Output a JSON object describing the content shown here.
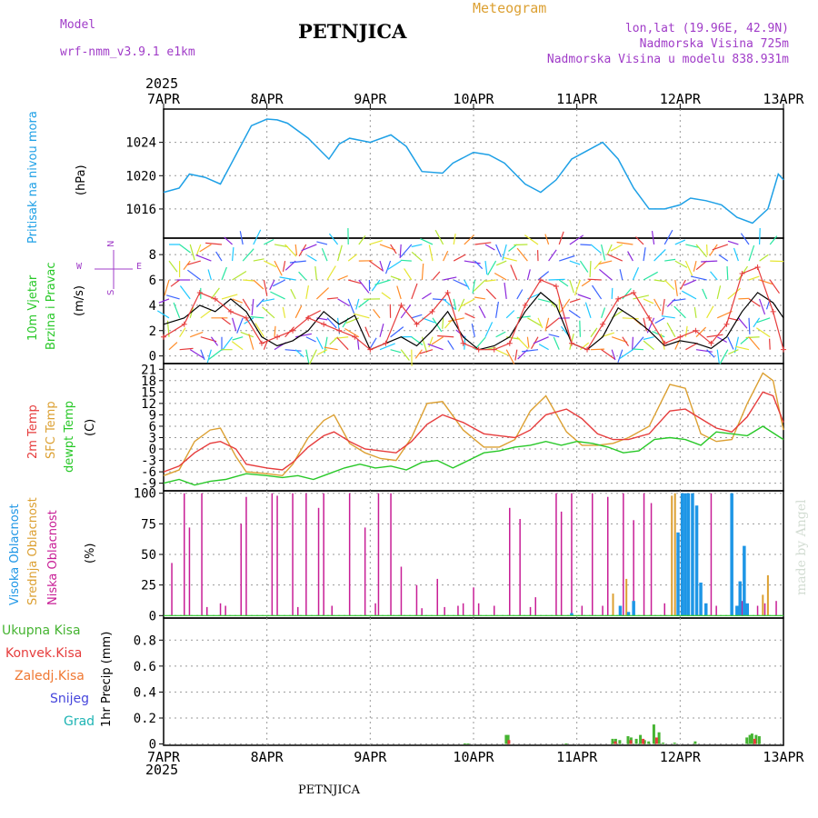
{
  "header": {
    "model_label": "Model",
    "model_name": "wrf-nmm_v3.9.1 e1km",
    "title": "PETNJICA",
    "meteogram_label": "Meteogram",
    "lonlat": "lon,lat (19.96E, 42.9N)",
    "altitude": "Nadmorska Visina 725m",
    "model_altitude": "Nadmorska Visina u modelu 838.931m",
    "year": "2025",
    "footer_title": "PETNJICA",
    "watermark": "made by Angel"
  },
  "colors": {
    "pressure": "#1ea0e6",
    "temp2m": "#e63c3c",
    "sfc": "#dca032",
    "dew": "#28c828",
    "cloud_high": "#1e96e6",
    "cloud_mid": "#dca032",
    "cloud_low": "#c81e96",
    "precip_total": "#46b432",
    "precip_conv": "#e63c3c",
    "precip_frozen": "#f07832",
    "precip_snow": "#4646dc",
    "precip_hail": "#1eb4b4",
    "axis_text": "#000000",
    "meta_text": "#a03cc8"
  },
  "chart_data": [
    {
      "type": "line",
      "panel": "pressure",
      "ylabel_name": "Pritisak na nivou mora",
      "ylabel_unit": "(hPa)",
      "yticks": [
        1016,
        1020,
        1024
      ],
      "ylim": [
        1012.5,
        1028
      ],
      "x_unit": "days since 7APR 00UTC",
      "xlim": [
        0,
        6
      ],
      "xticks": [
        "7APR",
        "8APR",
        "9APR",
        "10APR",
        "11APR",
        "12APR",
        "13APR"
      ],
      "series": [
        {
          "name": "pressure",
          "x": [
            0,
            0.15,
            0.25,
            0.4,
            0.55,
            0.7,
            0.85,
            1.0,
            1.1,
            1.2,
            1.4,
            1.6,
            1.7,
            1.8,
            2.0,
            2.2,
            2.35,
            2.5,
            2.7,
            2.8,
            3.0,
            3.15,
            3.3,
            3.5,
            3.65,
            3.8,
            3.95,
            4.1,
            4.25,
            4.4,
            4.55,
            4.7,
            4.85,
            5.0,
            5.1,
            5.25,
            5.4,
            5.55,
            5.7,
            5.85,
            5.95,
            6.0
          ],
          "values": [
            1018.0,
            1018.5,
            1020.2,
            1019.8,
            1019.0,
            1022.5,
            1026.0,
            1026.8,
            1026.7,
            1026.3,
            1024.5,
            1022.0,
            1023.8,
            1024.5,
            1024.0,
            1024.9,
            1023.5,
            1020.5,
            1020.3,
            1021.5,
            1022.8,
            1022.5,
            1021.5,
            1019.0,
            1018.0,
            1019.5,
            1022.0,
            1023.0,
            1024.0,
            1022.0,
            1018.5,
            1016.0,
            1016.0,
            1016.5,
            1017.3,
            1017.0,
            1016.5,
            1015.0,
            1014.3,
            1016.0,
            1020.2,
            1019.5
          ]
        }
      ]
    },
    {
      "type": "line",
      "panel": "wind",
      "ylabel_name": "10m Vjetar",
      "ylabel_name2": "Brzina i Pravac",
      "ylabel_unit": "(m/s)",
      "compass_n": "N",
      "compass_w": "W",
      "compass_e": "E",
      "compass_s": "S",
      "yticks": [
        0,
        2,
        4,
        6,
        8
      ],
      "ylim": [
        -0.6,
        9.3
      ],
      "xlim": [
        0,
        6
      ],
      "barb_rows": [
        8.8,
        7.5,
        6,
        4.5,
        3,
        1.5,
        0.5
      ],
      "series": [
        {
          "name": "wind speed",
          "x": [
            0,
            0.2,
            0.35,
            0.5,
            0.65,
            0.8,
            0.95,
            1.1,
            1.25,
            1.4,
            1.55,
            1.7,
            1.85,
            2.0,
            2.15,
            2.3,
            2.45,
            2.6,
            2.75,
            2.9,
            3.05,
            3.2,
            3.35,
            3.5,
            3.65,
            3.8,
            3.95,
            4.1,
            4.25,
            4.4,
            4.55,
            4.7,
            4.85,
            5.0,
            5.15,
            5.3,
            5.45,
            5.6,
            5.75,
            5.9,
            6.0
          ],
          "values": [
            2.5,
            3.0,
            4.0,
            3.5,
            4.5,
            3.5,
            1.5,
            0.8,
            1.2,
            2.0,
            3.5,
            2.5,
            3.2,
            0.5,
            1.0,
            1.5,
            0.8,
            2.0,
            3.5,
            1.5,
            0.5,
            0.8,
            1.5,
            3.5,
            5.0,
            4.0,
            1.0,
            0.5,
            1.5,
            3.8,
            3.0,
            2.0,
            0.8,
            1.2,
            1.0,
            0.6,
            1.5,
            3.5,
            5.0,
            4.2,
            3.0
          ]
        },
        {
          "name": "wind gust",
          "x": [
            0,
            0.2,
            0.35,
            0.5,
            0.65,
            0.8,
            0.95,
            1.1,
            1.25,
            1.4,
            1.55,
            1.7,
            1.85,
            2.0,
            2.15,
            2.3,
            2.45,
            2.6,
            2.75,
            2.9,
            3.05,
            3.2,
            3.35,
            3.5,
            3.65,
            3.8,
            3.95,
            4.1,
            4.25,
            4.4,
            4.55,
            4.7,
            4.85,
            5.0,
            5.15,
            5.3,
            5.45,
            5.6,
            5.75,
            5.9,
            6.0
          ],
          "values": [
            1.5,
            2.5,
            5.0,
            4.5,
            3.5,
            3.0,
            1.0,
            1.5,
            2.0,
            3.0,
            2.5,
            2.0,
            1.5,
            0.5,
            1.0,
            4.0,
            2.5,
            3.5,
            5.0,
            1.0,
            0.5,
            0.5,
            1.0,
            4.0,
            6.0,
            5.5,
            1.0,
            0.5,
            2.5,
            4.5,
            5.0,
            3.0,
            1.0,
            1.5,
            2.0,
            1.0,
            2.5,
            6.5,
            7.0,
            3.5,
            0.5
          ]
        }
      ]
    },
    {
      "type": "line",
      "panel": "temperature",
      "ylabel_t2": "2m Temp",
      "ylabel_sfc": "SFC Temp",
      "ylabel_dew": "dewpt Temp",
      "ylabel_unit": "(C)",
      "yticks": [
        -9,
        -6,
        -3,
        0,
        3,
        6,
        9,
        12,
        15,
        18,
        21
      ],
      "ylim": [
        -11,
        22.5
      ],
      "xlim": [
        0,
        6
      ],
      "series": [
        {
          "name": "2m Temp",
          "x": [
            0,
            0.15,
            0.3,
            0.45,
            0.55,
            0.7,
            0.8,
            1.0,
            1.15,
            1.25,
            1.4,
            1.55,
            1.65,
            1.8,
            1.95,
            2.1,
            2.25,
            2.4,
            2.55,
            2.7,
            2.9,
            3.1,
            3.25,
            3.4,
            3.55,
            3.7,
            3.9,
            4.05,
            4.2,
            4.35,
            4.5,
            4.7,
            4.9,
            5.05,
            5.2,
            5.35,
            5.5,
            5.65,
            5.8,
            5.9,
            6.0
          ],
          "values": [
            -6.0,
            -4.5,
            -1.0,
            1.5,
            2.0,
            0.0,
            -4.0,
            -5.0,
            -5.5,
            -3.5,
            0.5,
            3.5,
            4.5,
            2.0,
            0.0,
            -0.5,
            -1.0,
            2.0,
            6.5,
            9.0,
            7.0,
            4.0,
            3.5,
            3.0,
            5.0,
            9.0,
            10.5,
            8.0,
            4.0,
            2.5,
            2.5,
            4.0,
            10.0,
            10.5,
            8.0,
            5.5,
            4.5,
            8.5,
            15.0,
            14.0,
            7.0
          ]
        },
        {
          "name": "SFC Temp",
          "x": [
            0,
            0.15,
            0.3,
            0.45,
            0.55,
            0.7,
            0.8,
            1.0,
            1.15,
            1.25,
            1.4,
            1.55,
            1.65,
            1.8,
            1.95,
            2.1,
            2.25,
            2.4,
            2.55,
            2.7,
            2.9,
            3.1,
            3.25,
            3.4,
            3.55,
            3.7,
            3.9,
            4.05,
            4.2,
            4.35,
            4.5,
            4.7,
            4.9,
            5.05,
            5.2,
            5.35,
            5.5,
            5.65,
            5.8,
            5.9,
            6.0
          ],
          "values": [
            -7.0,
            -5.5,
            2.0,
            5.0,
            5.5,
            -2.0,
            -6.0,
            -6.5,
            -7.0,
            -4.0,
            3.0,
            7.5,
            9.0,
            1.5,
            -1.0,
            -2.5,
            -3.0,
            3.0,
            12.0,
            12.5,
            5.0,
            0.5,
            0.5,
            2.5,
            10.0,
            14.0,
            4.5,
            1.0,
            1.0,
            1.5,
            3.0,
            6.0,
            17.0,
            16.0,
            4.0,
            2.0,
            2.5,
            12.0,
            20.0,
            18.0,
            5.0
          ]
        },
        {
          "name": "dewpt Temp",
          "x": [
            0,
            0.15,
            0.3,
            0.45,
            0.6,
            0.8,
            1.0,
            1.15,
            1.3,
            1.45,
            1.6,
            1.75,
            1.9,
            2.05,
            2.2,
            2.35,
            2.5,
            2.65,
            2.8,
            2.95,
            3.1,
            3.25,
            3.4,
            3.55,
            3.7,
            3.85,
            4.0,
            4.15,
            4.3,
            4.45,
            4.6,
            4.75,
            4.9,
            5.05,
            5.2,
            5.35,
            5.5,
            5.65,
            5.8,
            6.0
          ],
          "values": [
            -9.0,
            -8.0,
            -9.5,
            -8.5,
            -8.0,
            -6.5,
            -7.0,
            -7.5,
            -7.0,
            -8.0,
            -6.5,
            -5.0,
            -4.0,
            -5.0,
            -4.5,
            -5.5,
            -3.5,
            -3.0,
            -5.0,
            -3.0,
            -1.0,
            -0.5,
            0.5,
            1.0,
            2.0,
            1.0,
            2.0,
            1.5,
            0.5,
            -1.0,
            -0.5,
            2.5,
            3.0,
            2.5,
            1.0,
            4.5,
            4.0,
            3.5,
            6.0,
            2.5
          ]
        }
      ]
    },
    {
      "type": "bar",
      "panel": "clouds",
      "ylabel_high": "Visoka Oblacnost",
      "ylabel_mid": "Srednja Oblacnost",
      "ylabel_low": "Niska Oblacnost",
      "ylabel_unit": "(%)",
      "yticks": [
        0,
        25,
        50,
        75,
        100
      ],
      "ylim": [
        -2,
        102
      ],
      "xlim": [
        0,
        6
      ],
      "series": [
        {
          "name": "Niska Oblacnost",
          "x": [
            0.08,
            0.2,
            0.25,
            0.37,
            0.42,
            0.55,
            0.6,
            0.75,
            0.8,
            1.05,
            1.1,
            1.25,
            1.3,
            1.38,
            1.5,
            1.55,
            1.63,
            1.8,
            1.95,
            2.05,
            2.08,
            2.2,
            2.3,
            2.45,
            2.5,
            2.65,
            2.72,
            2.85,
            2.9,
            3.0,
            3.05,
            3.2,
            3.35,
            3.45,
            3.55,
            3.6,
            3.8,
            3.85,
            3.95,
            4.05,
            4.15,
            4.25,
            4.3,
            4.45,
            4.55,
            4.65,
            4.72,
            4.85,
            4.95,
            5.05,
            5.2,
            5.3,
            5.35,
            5.5,
            5.6,
            5.75,
            5.82,
            5.93
          ],
          "values": [
            43,
            100,
            72,
            100,
            7,
            10,
            8,
            75,
            97,
            100,
            98,
            100,
            7,
            100,
            88,
            100,
            8,
            100,
            72,
            10,
            100,
            100,
            40,
            25,
            6,
            30,
            7,
            8,
            10,
            23,
            10,
            8,
            88,
            79,
            7,
            15,
            100,
            85,
            100,
            8,
            100,
            8,
            97,
            100,
            78,
            100,
            92,
            10,
            7,
            10,
            5,
            100,
            8,
            8,
            12,
            8,
            10,
            12
          ]
        },
        {
          "name": "Srednja Oblacnost",
          "x": [
            4.35,
            4.48,
            4.55,
            4.92,
            4.95,
            5.08,
            5.12,
            5.55,
            5.8,
            5.85
          ],
          "values": [
            18,
            30,
            12,
            98,
            100,
            92,
            98,
            8,
            17,
            33
          ]
        },
        {
          "name": "Visoka Oblacnost",
          "x": [
            3.95,
            4.42,
            4.5,
            4.55,
            4.98,
            5.02,
            5.05,
            5.08,
            5.12,
            5.16,
            5.2,
            5.25,
            5.5,
            5.55,
            5.58,
            5.62,
            5.65
          ],
          "values": [
            2,
            8,
            3,
            12,
            68,
            100,
            100,
            100,
            100,
            90,
            27,
            10,
            100,
            8,
            28,
            57,
            10
          ]
        }
      ]
    },
    {
      "type": "bar",
      "panel": "precipitation",
      "legend_total": "Ukupna Kisa",
      "legend_conv": "Konvek.Kisa",
      "legend_frozen": "Zaledj.Kisa",
      "legend_snow": "Snijeg",
      "legend_hail": "Grad",
      "ylabel": "1hr Precip (mm)",
      "yticks": [
        0,
        0.2,
        0.4,
        0.6,
        0.8
      ],
      "ylim": [
        -0.01,
        0.97
      ],
      "xlim": [
        0,
        6
      ],
      "series": [
        {
          "name": "Ukupna Kisa",
          "x": [
            2.92,
            2.95,
            3.32,
            3.34,
            3.9,
            4.35,
            4.38,
            4.42,
            4.5,
            4.53,
            4.58,
            4.62,
            4.66,
            4.7,
            4.75,
            4.8,
            4.84,
            4.95,
            5.15,
            5.65,
            5.68,
            5.7,
            5.74,
            5.77
          ],
          "values": [
            0.005,
            0.005,
            0.07,
            0.07,
            0.005,
            0.04,
            0.04,
            0.03,
            0.06,
            0.05,
            0.04,
            0.07,
            0.03,
            0.02,
            0.15,
            0.09,
            0.01,
            0.01,
            0.02,
            0.05,
            0.07,
            0.08,
            0.07,
            0.06
          ]
        },
        {
          "name": "Konvek.Kisa",
          "x": [
            3.32,
            4.35,
            4.5,
            4.62,
            4.75,
            5.7
          ],
          "values": [
            0.03,
            0.02,
            0.03,
            0.04,
            0.05,
            0.04
          ]
        }
      ]
    }
  ]
}
